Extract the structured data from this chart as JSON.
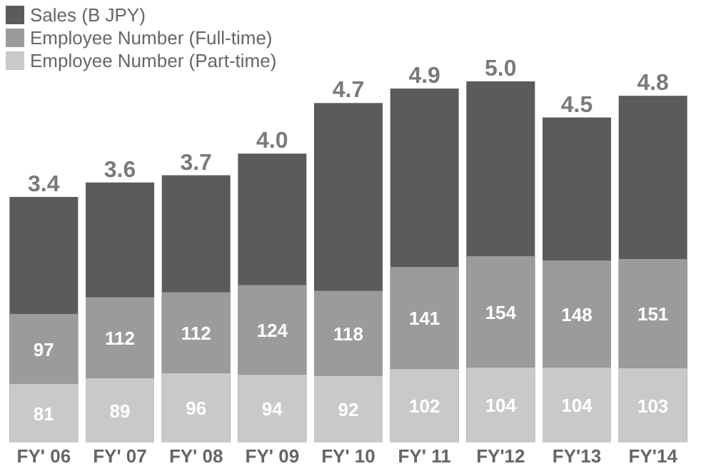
{
  "chart_data": {
    "type": "bar",
    "stacked": true,
    "legend": "top left",
    "tick_labels": "x",
    "categories": [
      "FY' 06",
      "FY' 07",
      "FY' 08",
      "FY' 09",
      "FY' 10",
      "FY' 11",
      "FY'12",
      "FY'13",
      "FY'14"
    ],
    "ylim": [
      0,
      500
    ],
    "y2lim": [
      0,
      5
    ],
    "series": [
      {
        "name": "Sales (B JPY)",
        "color": "#5b5b5b",
        "axis": "y2",
        "values": [
          3.4,
          3.6,
          3.7,
          4.0,
          4.7,
          4.9,
          5.0,
          4.5,
          4.8
        ],
        "value_labels": [
          "3.4",
          "3.6",
          "3.7",
          "4.0",
          "4.7",
          "4.9",
          "5.0",
          "4.5",
          "4.8"
        ]
      },
      {
        "name": "Employee Number (Part-time)",
        "color": "#c9c9c9",
        "values": [
          81,
          89,
          96,
          94,
          92,
          102,
          104,
          104,
          103
        ],
        "value_labels": [
          "81",
          "89",
          "96",
          "94",
          "92",
          "102",
          "104",
          "104",
          "103"
        ]
      },
      {
        "name": "Employee Number (Full-time)",
        "color": "#9b9b9b",
        "values": [
          97,
          112,
          112,
          124,
          118,
          141,
          154,
          148,
          151
        ],
        "value_labels": [
          "97",
          "112",
          "112",
          "124",
          "118",
          "141",
          "154",
          "148",
          "151"
        ]
      }
    ]
  }
}
